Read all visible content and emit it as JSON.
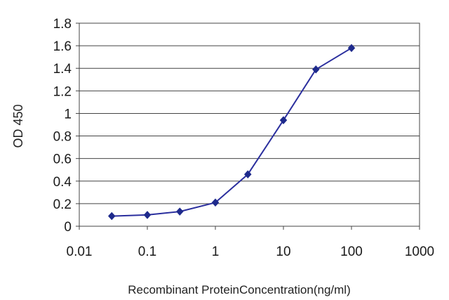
{
  "chart_data": {
    "type": "line",
    "title": "",
    "xlabel": "Recombinant ProteinConcentration(ng/ml)",
    "ylabel": "OD 450",
    "xscale": "log",
    "xlim": [
      0.01,
      1000
    ],
    "ylim": [
      0,
      1.8
    ],
    "x_ticks": [
      0.01,
      0.1,
      1,
      10,
      100,
      1000
    ],
    "x_tick_labels": [
      "0.01",
      "0.1",
      "1",
      "10",
      "100",
      "1000"
    ],
    "y_ticks": [
      0,
      0.2,
      0.4,
      0.6,
      0.8,
      1,
      1.2,
      1.4,
      1.6,
      1.8
    ],
    "y_tick_labels": [
      "0",
      "0.2",
      "0.4",
      "0.6",
      "0.8",
      "1",
      "1.2",
      "1.4",
      "1.6",
      "1.8"
    ],
    "grid": "horizontal",
    "legend": "none",
    "series": [
      {
        "x": [
          0.03,
          0.1,
          0.3,
          1,
          3,
          10,
          30,
          100
        ],
        "y": [
          0.09,
          0.1,
          0.13,
          0.21,
          0.46,
          0.94,
          1.39,
          1.58
        ],
        "color": "#2b2f9e"
      }
    ]
  }
}
